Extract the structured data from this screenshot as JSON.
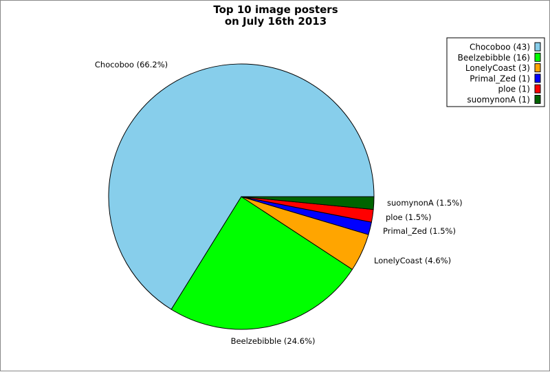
{
  "chart_data": {
    "type": "pie",
    "title_lines": [
      "Top 10 image posters",
      "on July 16th 2013"
    ],
    "slices": [
      {
        "name": "Chocoboo",
        "value": 43,
        "percent_label": "Chocoboo (66.2%)",
        "legend_label": "Chocoboo (43)",
        "color": "#87ceeb"
      },
      {
        "name": "Beelzebibble",
        "value": 16,
        "percent_label": "Beelzebibble (24.6%)",
        "legend_label": "Beelzebibble (16)",
        "color": "#00ff00"
      },
      {
        "name": "LonelyCoast",
        "value": 3,
        "percent_label": "LonelyCoast (4.6%)",
        "legend_label": "LonelyCoast (3)",
        "color": "#ffa500"
      },
      {
        "name": "Primal_Zed",
        "value": 1,
        "percent_label": "Primal_Zed (1.5%)",
        "legend_label": "Primal_Zed (1)",
        "color": "#0000ff"
      },
      {
        "name": "ploe",
        "value": 1,
        "percent_label": "ploe (1.5%)",
        "legend_label": "ploe (1)",
        "color": "#ff0000"
      },
      {
        "name": "suomynonA",
        "value": 1,
        "percent_label": "suomynonA (1.5%)",
        "legend_label": "suomynonA (1)",
        "color": "#006400"
      }
    ],
    "start_angle_deg": 0,
    "direction": "clockwise",
    "legend_position": "top-right"
  }
}
